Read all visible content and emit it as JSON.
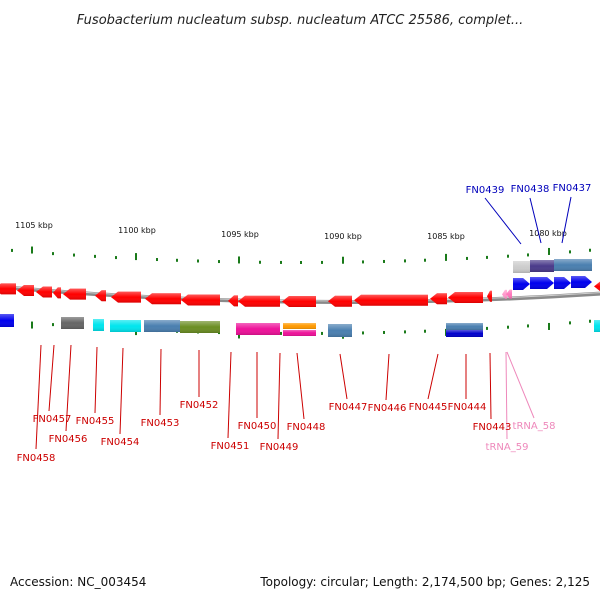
{
  "title": "Fusobacterium nucleatum subsp. nucleatum ATCC 25586, complet...",
  "footer": {
    "accession": "Accession: NC_003454",
    "summary": "Topology: circular; Length: 2,174,500 bp; Genes: 2,125"
  },
  "colors": {
    "backbone": "#888888",
    "tick": "#1a7a1a",
    "gene_red": "#ff0000",
    "label_red": "#cc0000",
    "label_blue": "#0000bb",
    "label_pink": "#ee88bb",
    "blue": "#0000ee",
    "cyan": "#00e5ee",
    "steel": "#4a7fb0",
    "olive": "#6b8e23",
    "magenta": "#ee1199",
    "orange": "#ff9900",
    "gray": "#666666",
    "purple": "#4a3a8a",
    "navy": "#0000cc",
    "light_gray": "#cccccc"
  },
  "kbp_labels": [
    "1105 kbp",
    "1100 kbp",
    "1095 kbp",
    "1090 kbp",
    "1085 kbp",
    "1080 kbp"
  ],
  "gene_labels": [
    "FN0458",
    "FN0457",
    "FN0456",
    "FN0455",
    "FN0454",
    "FN0453",
    "FN0452",
    "FN0451",
    "FN0450",
    "FN0449",
    "FN0448",
    "FN0447",
    "FN0446",
    "FN0445",
    "FN0444",
    "FN0443",
    "tRNA_59",
    "tRNA_58",
    "FN0439",
    "FN0438",
    "FN0437"
  ]
}
